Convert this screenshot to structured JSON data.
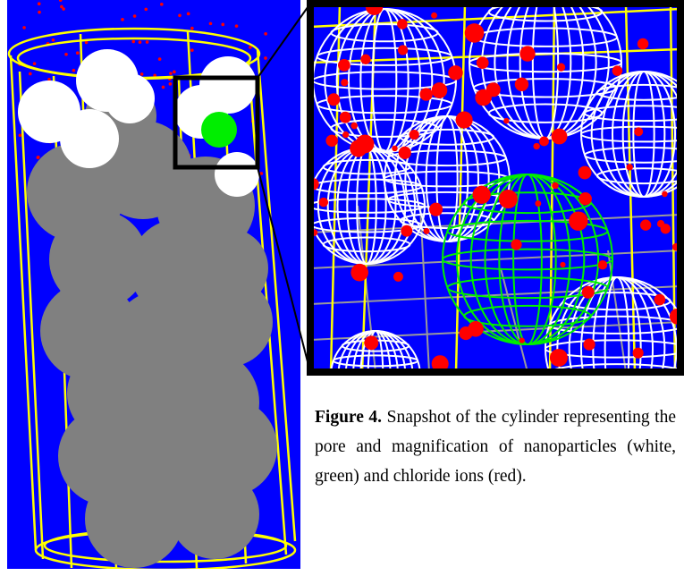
{
  "figure": {
    "label": "Figure 4.",
    "caption": "Snapshot of the cylinder representing the pore and magnification of nanoparticles (white, green) and chloride ions (red)."
  }
}
